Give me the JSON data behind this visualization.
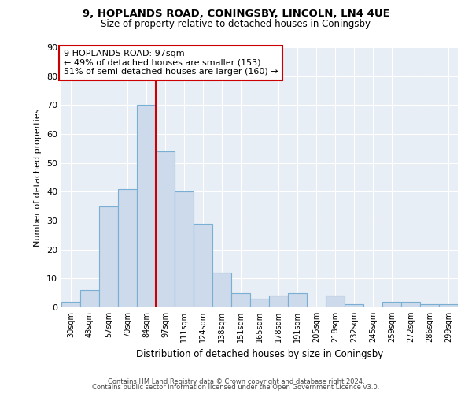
{
  "title1": "9, HOPLANDS ROAD, CONINGSBY, LINCOLN, LN4 4UE",
  "title2": "Size of property relative to detached houses in Coningsby",
  "xlabel": "Distribution of detached houses by size in Coningsby",
  "ylabel": "Number of detached properties",
  "bar_labels": [
    "30sqm",
    "43sqm",
    "57sqm",
    "70sqm",
    "84sqm",
    "97sqm",
    "111sqm",
    "124sqm",
    "138sqm",
    "151sqm",
    "165sqm",
    "178sqm",
    "191sqm",
    "205sqm",
    "218sqm",
    "232sqm",
    "245sqm",
    "259sqm",
    "272sqm",
    "286sqm",
    "299sqm"
  ],
  "bar_heights": [
    2,
    6,
    35,
    41,
    70,
    54,
    40,
    29,
    12,
    5,
    3,
    4,
    5,
    0,
    4,
    1,
    0,
    2,
    2,
    1,
    1
  ],
  "bar_color": "#ccdaeb",
  "bar_edge_color": "#7aafd4",
  "vline_index": 5,
  "vline_color": "#cc0000",
  "annotation_title": "9 HOPLANDS ROAD: 97sqm",
  "annotation_line1": "← 49% of detached houses are smaller (153)",
  "annotation_line2": "51% of semi-detached houses are larger (160) →",
  "annotation_box_color": "white",
  "annotation_box_edge": "#cc0000",
  "ylim": [
    0,
    90
  ],
  "yticks": [
    0,
    10,
    20,
    30,
    40,
    50,
    60,
    70,
    80,
    90
  ],
  "bg_color": "#e8eef5",
  "grid_color": "#ffffff",
  "footer1": "Contains HM Land Registry data © Crown copyright and database right 2024.",
  "footer2": "Contains public sector information licensed under the Open Government Licence v3.0."
}
